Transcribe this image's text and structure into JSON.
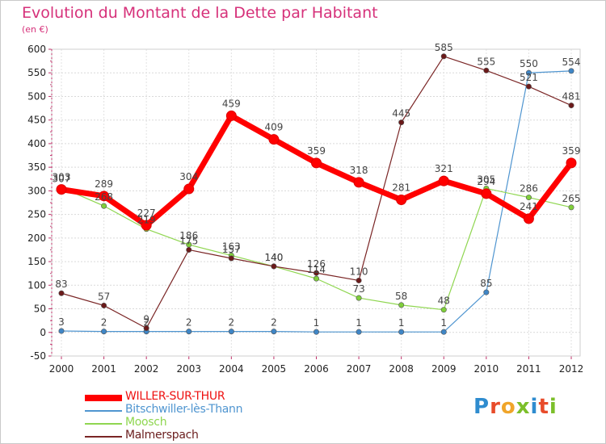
{
  "title": "Evolution du Montant de la Dette par Habitant",
  "subtitle": "(en €)",
  "brand": {
    "letters": [
      "P",
      "r",
      "o",
      "x",
      "i",
      "t",
      "i"
    ],
    "colors": [
      "#2f8ccf",
      "#e84b2a",
      "#f0a52a",
      "#7cbf2a",
      "#2f8ccf",
      "#e84b2a",
      "#7cbf2a"
    ]
  },
  "chart_data": {
    "type": "line",
    "title": "Evolution du Montant de la Dette par Habitant",
    "ylabel": "(en €)",
    "xlabel": "",
    "x": [
      "2000",
      "2001",
      "2002",
      "2003",
      "2004",
      "2005",
      "2006",
      "2007",
      "2008",
      "2009",
      "2010",
      "2011",
      "2012"
    ],
    "ylim": [
      -50,
      600
    ],
    "yticks": [
      "-50",
      "0",
      "50",
      "100",
      "150",
      "200",
      "250",
      "300",
      "350",
      "400",
      "450",
      "500",
      "550",
      "600"
    ],
    "grid": true,
    "legend": "bottom-left",
    "series": [
      {
        "name": "WILLER-SUR-THUR",
        "color": "#ff0000",
        "values": [
          303,
          289,
          227,
          304,
          459,
          409,
          359,
          318,
          281,
          321,
          294,
          241,
          359
        ]
      },
      {
        "name": "Bitschwiller-lès-Thann",
        "color": "#4f95d0",
        "values": [
          3,
          2,
          2,
          2,
          2,
          2,
          1,
          1,
          1,
          1,
          85,
          550,
          554
        ]
      },
      {
        "name": "Moosch",
        "color": "#8fd650",
        "values": [
          307,
          268,
          219,
          186,
          163,
          140,
          114,
          73,
          58,
          48,
          305,
          286,
          265
        ]
      },
      {
        "name": "Malmerspach",
        "color": "#7a2525",
        "values": [
          83,
          57,
          9,
          175,
          157,
          140,
          126,
          110,
          445,
          585,
          555,
          521,
          481
        ]
      }
    ]
  }
}
